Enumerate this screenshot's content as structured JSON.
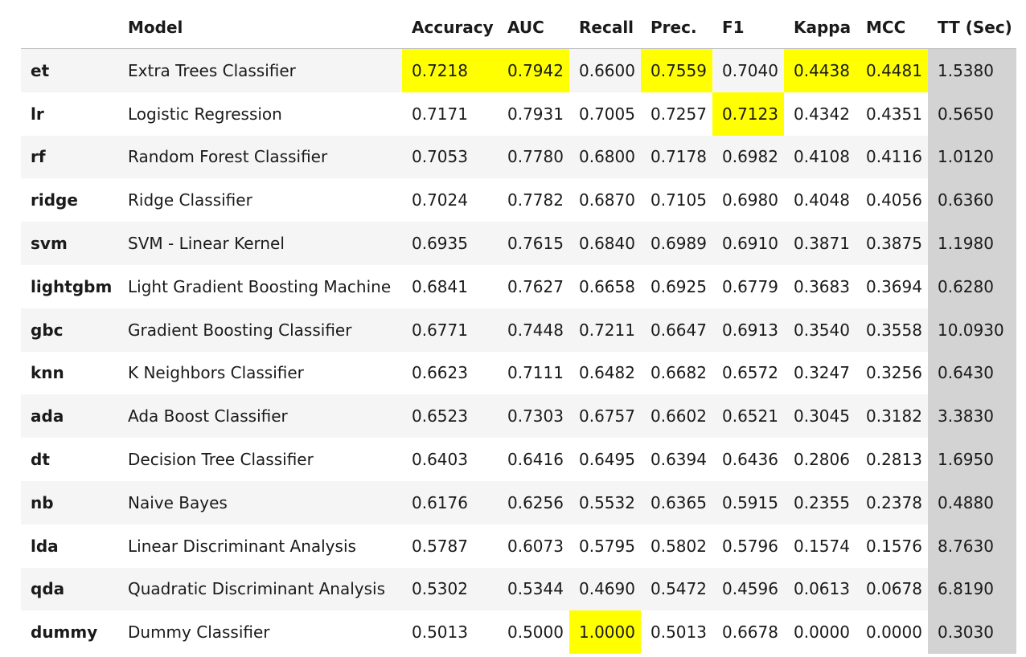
{
  "table": {
    "headers": [
      "",
      "Model",
      "Accuracy",
      "AUC",
      "Recall",
      "Prec.",
      "F1",
      "Kappa",
      "MCC",
      "TT (Sec)"
    ],
    "rows": [
      {
        "id": "et",
        "model": "Extra Trees Classifier",
        "accuracy": "0.7218",
        "auc": "0.7942",
        "recall": "0.6600",
        "prec": "0.7559",
        "f1": "0.7040",
        "kappa": "0.4438",
        "mcc": "0.4481",
        "tt": "1.5380"
      },
      {
        "id": "lr",
        "model": "Logistic Regression",
        "accuracy": "0.7171",
        "auc": "0.7931",
        "recall": "0.7005",
        "prec": "0.7257",
        "f1": "0.7123",
        "kappa": "0.4342",
        "mcc": "0.4351",
        "tt": "0.5650"
      },
      {
        "id": "rf",
        "model": "Random Forest Classifier",
        "accuracy": "0.7053",
        "auc": "0.7780",
        "recall": "0.6800",
        "prec": "0.7178",
        "f1": "0.6982",
        "kappa": "0.4108",
        "mcc": "0.4116",
        "tt": "1.0120"
      },
      {
        "id": "ridge",
        "model": "Ridge Classifier",
        "accuracy": "0.7024",
        "auc": "0.7782",
        "recall": "0.6870",
        "prec": "0.7105",
        "f1": "0.6980",
        "kappa": "0.4048",
        "mcc": "0.4056",
        "tt": "0.6360"
      },
      {
        "id": "svm",
        "model": "SVM - Linear Kernel",
        "accuracy": "0.6935",
        "auc": "0.7615",
        "recall": "0.6840",
        "prec": "0.6989",
        "f1": "0.6910",
        "kappa": "0.3871",
        "mcc": "0.3875",
        "tt": "1.1980"
      },
      {
        "id": "lightgbm",
        "model": "Light Gradient Boosting Machine",
        "accuracy": "0.6841",
        "auc": "0.7627",
        "recall": "0.6658",
        "prec": "0.6925",
        "f1": "0.6779",
        "kappa": "0.3683",
        "mcc": "0.3694",
        "tt": "0.6280"
      },
      {
        "id": "gbc",
        "model": "Gradient Boosting Classifier",
        "accuracy": "0.6771",
        "auc": "0.7448",
        "recall": "0.7211",
        "prec": "0.6647",
        "f1": "0.6913",
        "kappa": "0.3540",
        "mcc": "0.3558",
        "tt": "10.0930"
      },
      {
        "id": "knn",
        "model": "K Neighbors Classifier",
        "accuracy": "0.6623",
        "auc": "0.7111",
        "recall": "0.6482",
        "prec": "0.6682",
        "f1": "0.6572",
        "kappa": "0.3247",
        "mcc": "0.3256",
        "tt": "0.6430"
      },
      {
        "id": "ada",
        "model": "Ada Boost Classifier",
        "accuracy": "0.6523",
        "auc": "0.7303",
        "recall": "0.6757",
        "prec": "0.6602",
        "f1": "0.6521",
        "kappa": "0.3045",
        "mcc": "0.3182",
        "tt": "3.3830"
      },
      {
        "id": "dt",
        "model": "Decision Tree Classifier",
        "accuracy": "0.6403",
        "auc": "0.6416",
        "recall": "0.6495",
        "prec": "0.6394",
        "f1": "0.6436",
        "kappa": "0.2806",
        "mcc": "0.2813",
        "tt": "1.6950"
      },
      {
        "id": "nb",
        "model": "Naive Bayes",
        "accuracy": "0.6176",
        "auc": "0.6256",
        "recall": "0.5532",
        "prec": "0.6365",
        "f1": "0.5915",
        "kappa": "0.2355",
        "mcc": "0.2378",
        "tt": "0.4880"
      },
      {
        "id": "lda",
        "model": "Linear Discriminant Analysis",
        "accuracy": "0.5787",
        "auc": "0.6073",
        "recall": "0.5795",
        "prec": "0.5802",
        "f1": "0.5796",
        "kappa": "0.1574",
        "mcc": "0.1576",
        "tt": "8.7630"
      },
      {
        "id": "qda",
        "model": "Quadratic Discriminant Analysis",
        "accuracy": "0.5302",
        "auc": "0.5344",
        "recall": "0.4690",
        "prec": "0.5472",
        "f1": "0.4596",
        "kappa": "0.0613",
        "mcc": "0.0678",
        "tt": "6.8190"
      },
      {
        "id": "dummy",
        "model": "Dummy Classifier",
        "accuracy": "0.5013",
        "auc": "0.5000",
        "recall": "1.0000",
        "prec": "0.5013",
        "f1": "0.6678",
        "kappa": "0.0000",
        "mcc": "0.0000",
        "tt": "0.3030"
      }
    ],
    "highlight": {
      "accuracy": "et",
      "auc": "et",
      "recall": "dummy",
      "prec": "et",
      "f1": "lr",
      "kappa": "et",
      "mcc": "et"
    }
  },
  "colors": {
    "highlight": "#ffff00",
    "time_column": "#d3d3d3",
    "row_stripe": "#f5f5f5",
    "header_rule": "#bdbdbd"
  }
}
